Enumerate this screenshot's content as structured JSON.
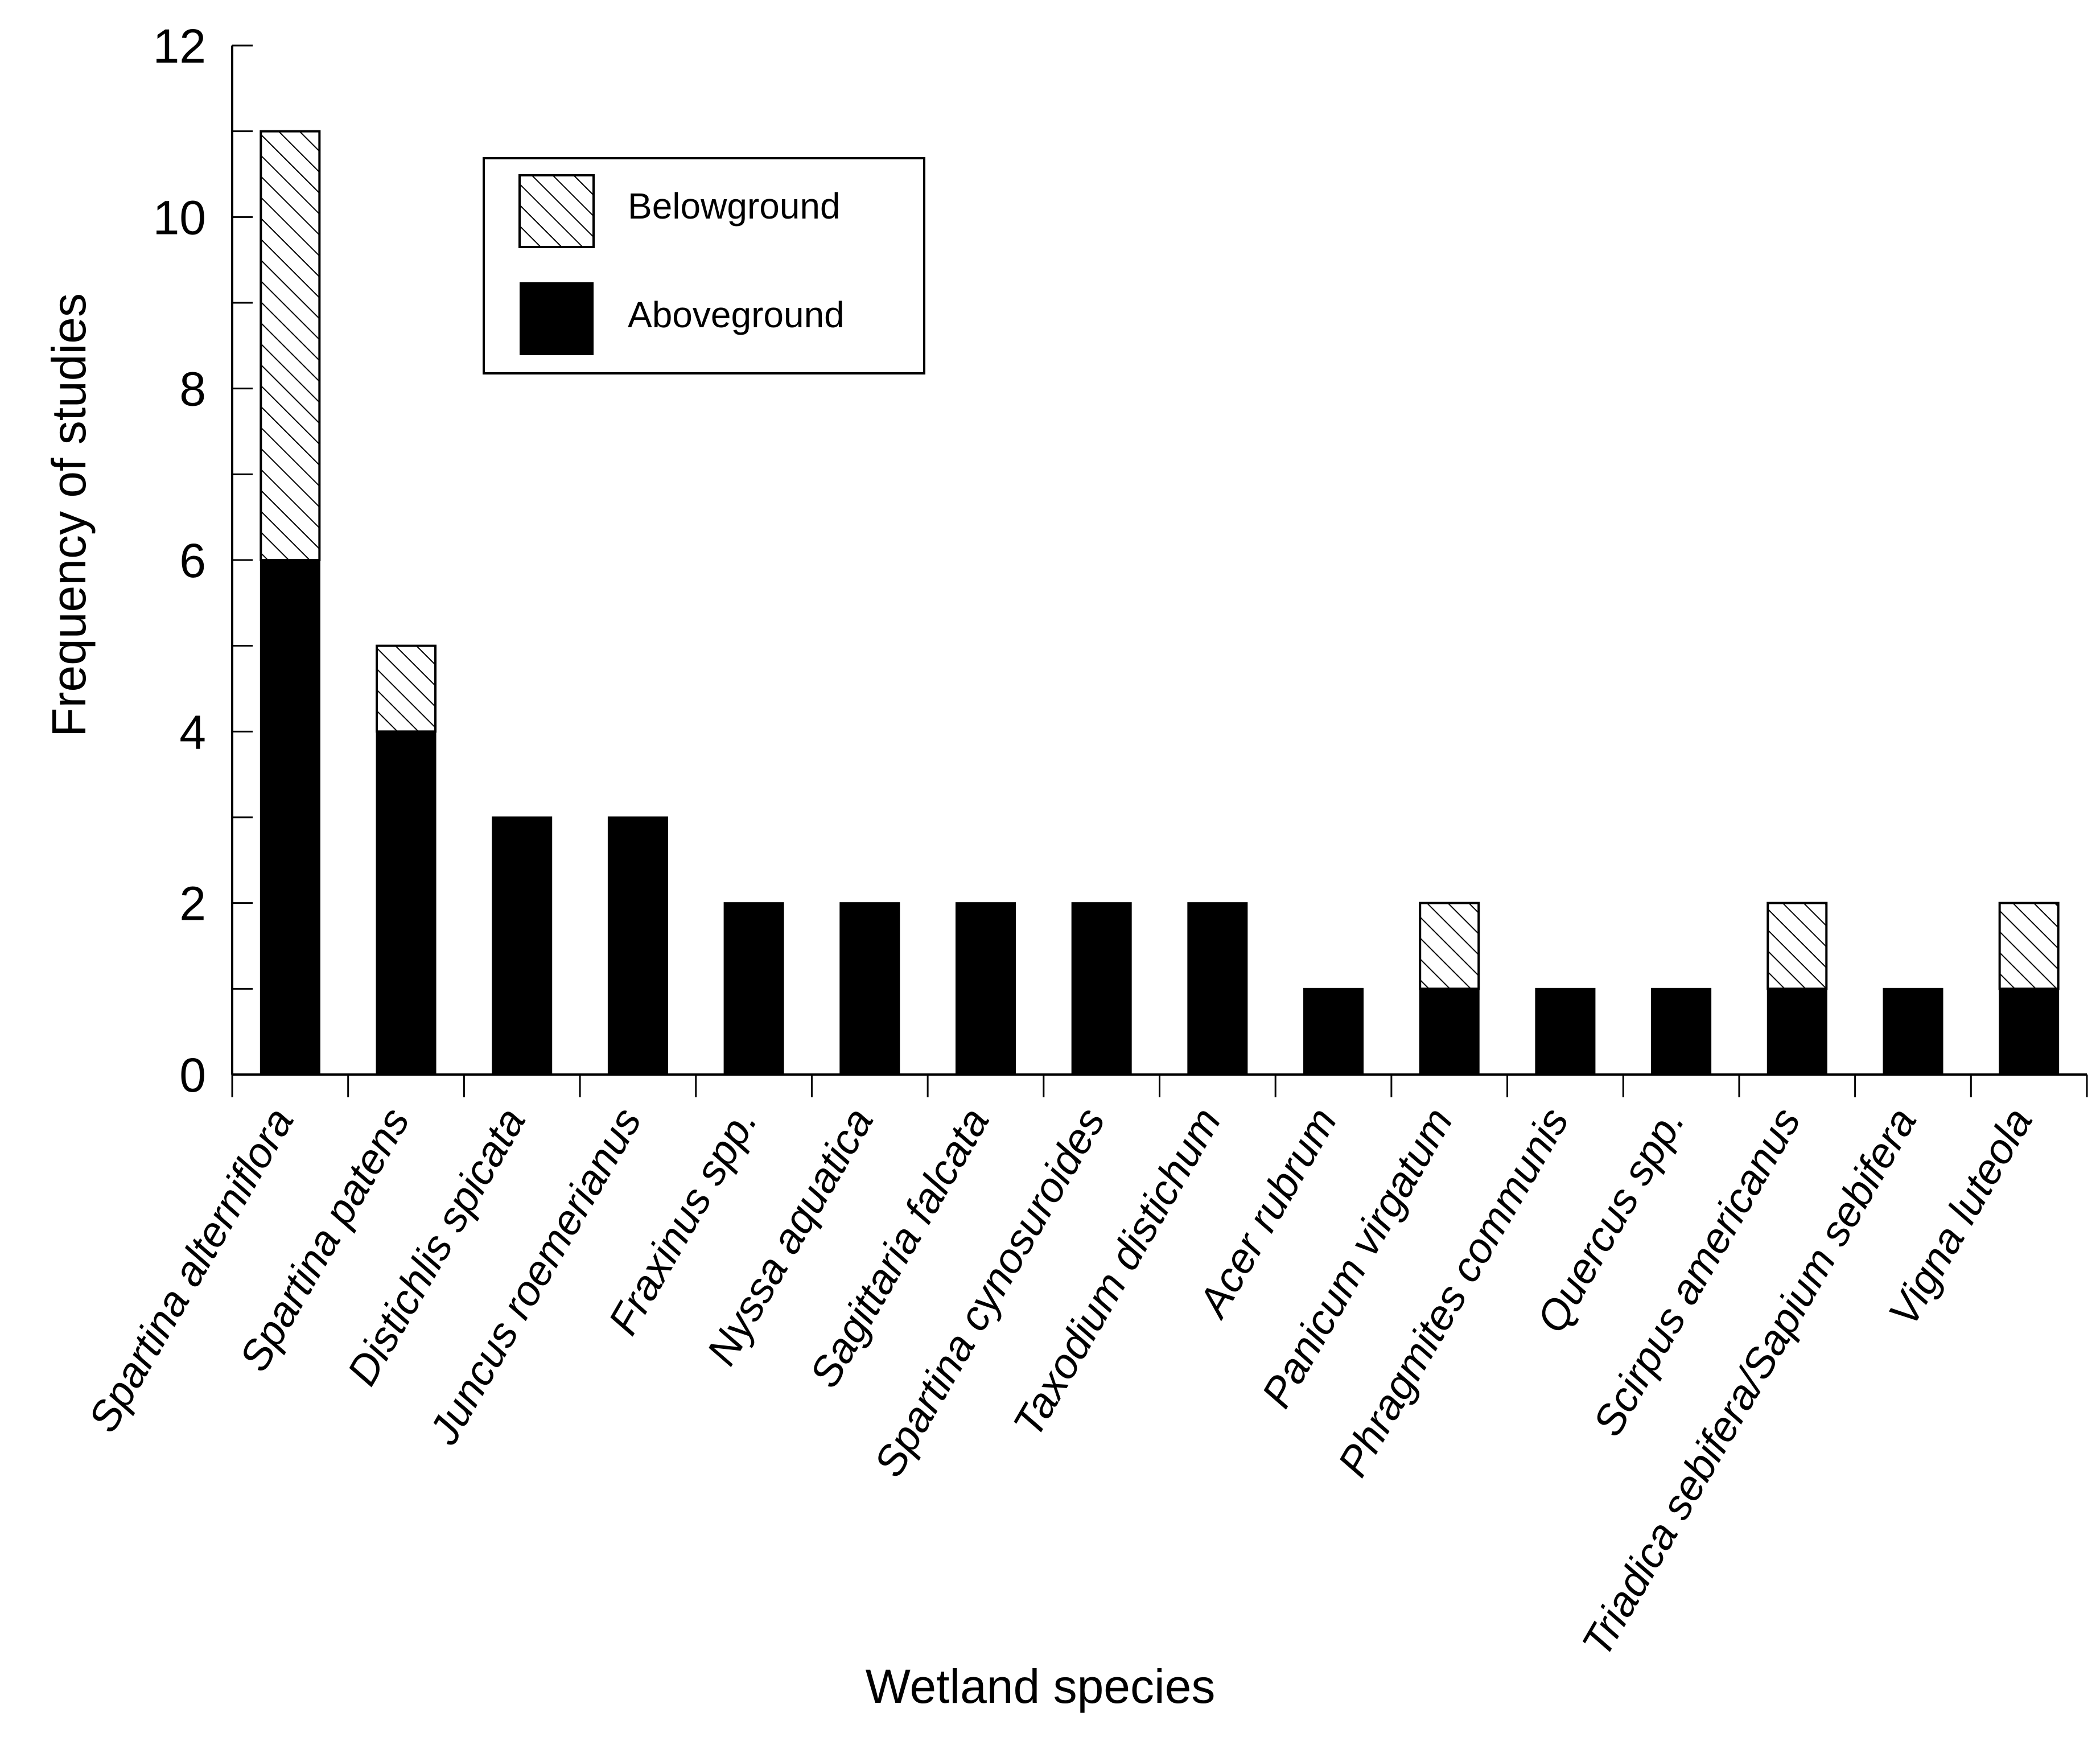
{
  "chart_data": {
    "type": "bar",
    "stacked": true,
    "title": "",
    "xlabel": "Wetland species",
    "ylabel": "Frequency of studies",
    "ylim": [
      0,
      12
    ],
    "yticks": [
      0,
      2,
      4,
      6,
      8,
      10,
      12
    ],
    "categories": [
      "Spartina alterniflora",
      "Spartina patens",
      "Distichlis spicata",
      "Juncus roemerianus",
      "Fraxinus spp.",
      "Nyssa aquatica",
      "Sagittaria falcata",
      "Spartina cynosuroides",
      "Taxodium distichum",
      "Acer rubrum",
      "Panicum virgatum",
      "Phragmites communis",
      "Quercus spp.",
      "Scirpus americanus",
      "Triadica sebifera/Sapium sebifera",
      "Vigna luteola"
    ],
    "series": [
      {
        "name": "Aboveground",
        "color": "#000000",
        "pattern": "solid",
        "values": [
          6,
          4,
          3,
          3,
          2,
          2,
          2,
          2,
          2,
          1,
          1,
          1,
          1,
          1,
          1,
          1
        ]
      },
      {
        "name": "Belowground",
        "color": "#ffffff",
        "pattern": "hatched",
        "values": [
          5,
          1,
          0,
          0,
          0,
          0,
          0,
          0,
          0,
          0,
          1,
          0,
          0,
          1,
          0,
          1
        ]
      }
    ],
    "legend": {
      "position": "top-left-inside",
      "entries": [
        "Belowground",
        "Aboveground"
      ]
    }
  }
}
